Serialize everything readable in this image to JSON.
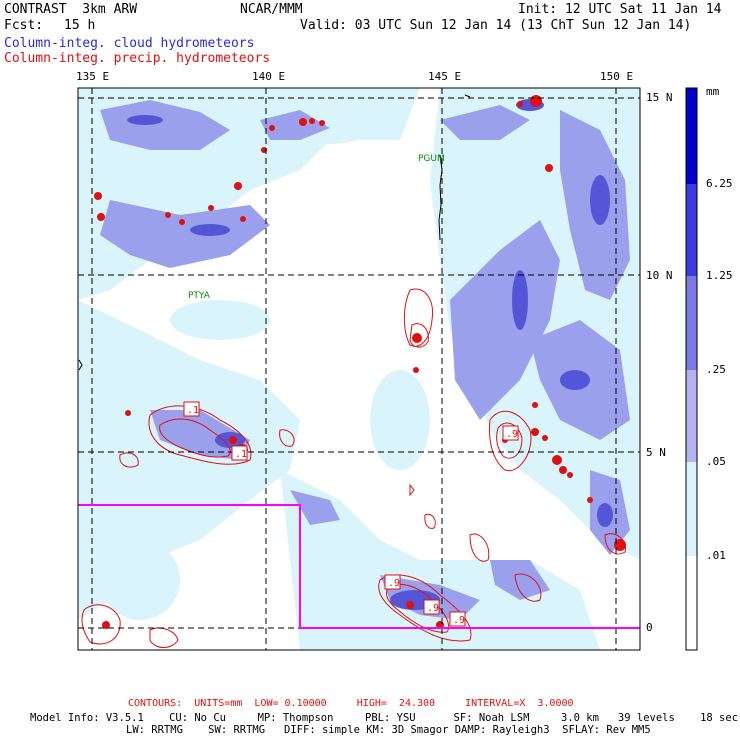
{
  "header": {
    "model": "CONTRAST  3km ARW",
    "org": "NCAR/MMM",
    "init": "Init: 12 UTC Sat 11 Jan 14",
    "fcst_label": "Fcst:",
    "fcst_value": "15 h",
    "valid": "Valid: 03 UTC Sun 12 Jan 14 (13 ChT Sun 12 Jan 14)",
    "field1": "Column-integ. cloud hydrometeors",
    "field2": "Column-integ. precip. hydrometeors"
  },
  "axes": {
    "lon_labels": [
      "135 E",
      "140 E",
      "145 E",
      "150 E"
    ],
    "lat_labels": [
      "15 N",
      "10 N",
      "5 N",
      "0"
    ]
  },
  "places": {
    "pgum": "PGUM",
    "ptya": "PTYA"
  },
  "contour_labels": [
    ".1",
    ".9",
    ".9",
    ".9",
    ".1",
    ".9"
  ],
  "colorbar": {
    "unit": "mm",
    "levels": [
      "6.25",
      "1.25",
      ".25",
      ".05",
      ".01"
    ],
    "colors": [
      "#0000cc",
      "#3a3ae0",
      "#7a7ae6",
      "#b3b3f2",
      "#d9f4fa",
      "#ffffff"
    ]
  },
  "footer": {
    "contours": "CONTOURS:  UNITS=mm  LOW= 0.10000     HIGH=  24.300     INTERVAL=X  3.0000",
    "model_info": "Model Info: V3.5.1    CU: No Cu     MP: Thompson     PBL: YSU      SF: Noah LSM     3.0 km   39 levels    18 sec",
    "model_info2": "LW: RRTMG    SW: RRTMG   DIFF: simple KM: 3D Smagor DAMP: Rayleigh3  SFLAY: Rev MM5"
  },
  "colors": {
    "cloud_light": "#d9f4fa",
    "cloud_mid": "#9aa0ec",
    "cloud_dark": "#5555d8",
    "precip": "#e01010",
    "boundary": "#ff00ff"
  }
}
